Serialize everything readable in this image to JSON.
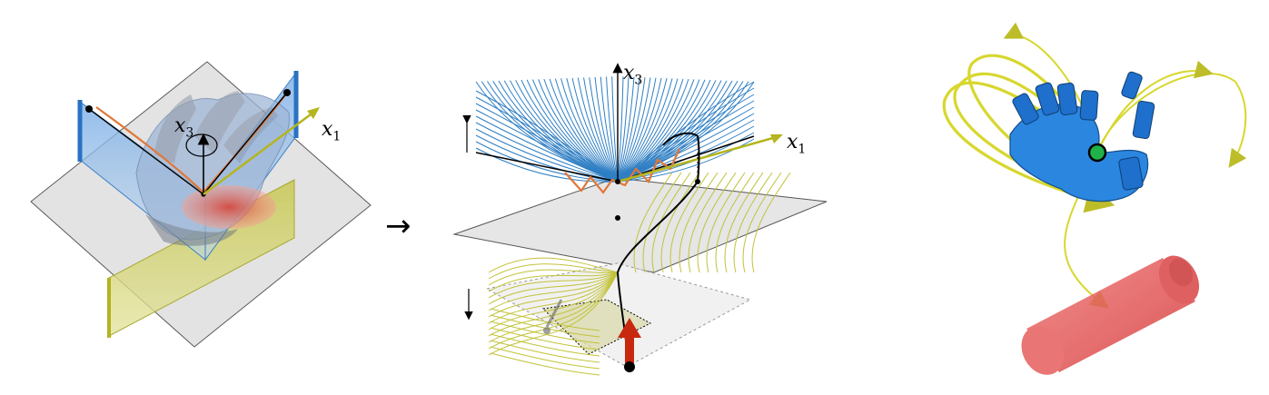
{
  "panel_left": {
    "label_x3": {
      "var": "x",
      "sub": "3"
    },
    "label_x1": {
      "var": "x",
      "sub": "1"
    }
  },
  "transition_arrow": "→",
  "panel_middle": {
    "label_x3": {
      "var": "x",
      "sub": "3"
    },
    "label_x1": {
      "var": "x",
      "sub": "1"
    }
  },
  "colors": {
    "blue_flow": "#2f7fc4",
    "yellow_flow": "#c2c23a",
    "hand_blue": "#2b86e0",
    "cylinder_red": "#e84a4a",
    "arrow_red": "#c8280e",
    "marker_green": "#1fb24a",
    "orange_path": "#e0773a"
  }
}
